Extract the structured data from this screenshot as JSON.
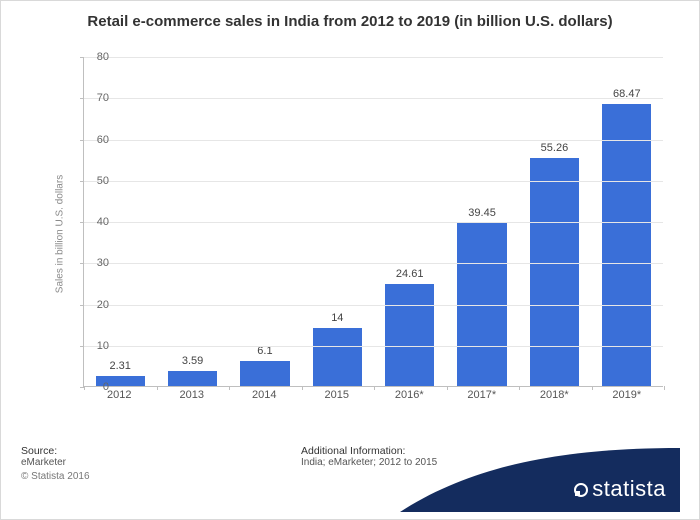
{
  "chart": {
    "type": "bar",
    "title": "Retail e-commerce sales in India from 2012 to 2019 (in billion U.S. dollars)",
    "title_fontsize": 15,
    "ylabel": "Sales in billion U.S. dollars",
    "label_fontsize": 10,
    "categories": [
      "2012",
      "2013",
      "2014",
      "2015",
      "2016*",
      "2017*",
      "2018*",
      "2019*"
    ],
    "values": [
      2.31,
      3.59,
      6.1,
      14,
      24.61,
      39.45,
      55.26,
      68.47
    ],
    "value_labels": [
      "2.31",
      "3.59",
      "6.1",
      "14",
      "24.61",
      "39.45",
      "55.26",
      "68.47"
    ],
    "bar_color": "#3a6fd8",
    "ylim": [
      0,
      80
    ],
    "ytick_step": 10,
    "yticks": [
      0,
      10,
      20,
      30,
      40,
      50,
      60,
      70,
      80
    ],
    "grid_color": "#e6e6e6",
    "axis_color": "#bfbfbf",
    "background_color": "#ffffff",
    "text_color": "#444444",
    "bar_width": 0.68
  },
  "footer": {
    "source_title": "Source:",
    "source_text": "eMarketer",
    "copyright": "© Statista 2016",
    "additional_title": "Additional Information:",
    "additional_text": "India; eMarketer; 2012 to 2015",
    "logo_text": "statista",
    "swoosh_color": "#142c5e"
  }
}
